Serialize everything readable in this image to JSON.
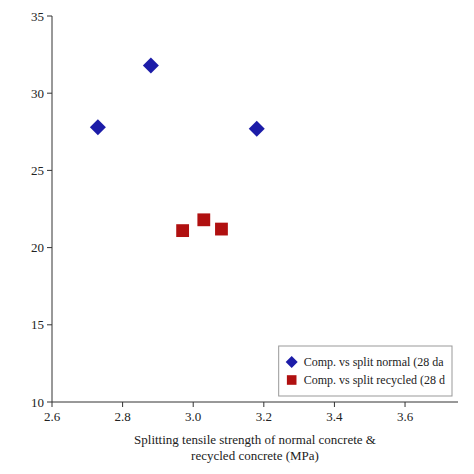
{
  "chart_data": {
    "type": "scatter",
    "x_label": "Splitting tensile strength of normal concrete &\nrecycled concrete (MPa)",
    "series": [
      {
        "name": "Comp. vs split normal (28 da",
        "color": "#1c1ca8",
        "marker": "diamond",
        "x": [
          2.73,
          2.88,
          3.18
        ],
        "values": [
          27.8,
          31.8,
          27.7
        ]
      },
      {
        "name": "Comp. vs split recycled (28 d",
        "color": "#b01010",
        "marker": "square",
        "x": [
          2.97,
          3.03,
          3.08
        ],
        "values": [
          21.1,
          21.8,
          21.2
        ]
      }
    ],
    "xlim": [
      2.6,
      3.75
    ],
    "ylim": [
      10,
      35
    ],
    "xticks": [
      2.6,
      2.8,
      {
        "value": 3.0,
        "label": "3.0"
      },
      3.2,
      3.4,
      3.6
    ],
    "yticks": [
      10,
      15,
      20,
      25,
      30,
      35
    ],
    "grid": false,
    "legend": "lower right"
  }
}
